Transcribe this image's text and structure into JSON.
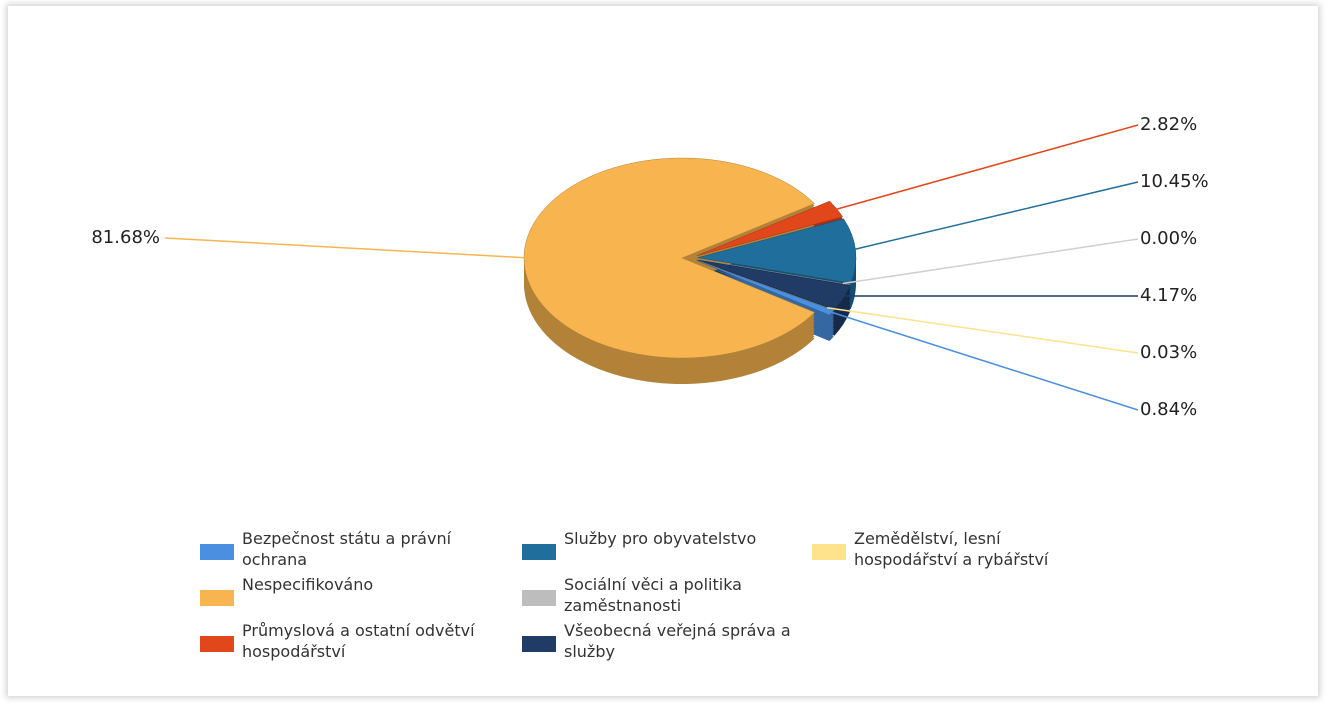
{
  "chart_data": {
    "type": "pie",
    "categories": [
      "Bezpečnost státu a právní ochrana",
      "Nespecifikováno",
      "Průmyslová a ostatní odvětví hospodářství",
      "Služby pro obyvatelstvo",
      "Sociální věci a politika zaměstnanosti",
      "Všeobecná veřejná správa a služby",
      "Zemědělství, lesní hospodářství a rybářství"
    ],
    "values": [
      0.84,
      81.68,
      2.82,
      10.45,
      0.0,
      4.17,
      0.03
    ],
    "value_labels": [
      "0.84%",
      "81.68%",
      "2.82%",
      "10.45%",
      "0.00%",
      "4.17%",
      "0.03%"
    ],
    "colors": [
      "#4a8fe0",
      "#f8b54f",
      "#e2471b",
      "#1f6e9c",
      "#bdbdbd",
      "#1f3b66",
      "#ffe28c"
    ],
    "legend": "bottom"
  }
}
